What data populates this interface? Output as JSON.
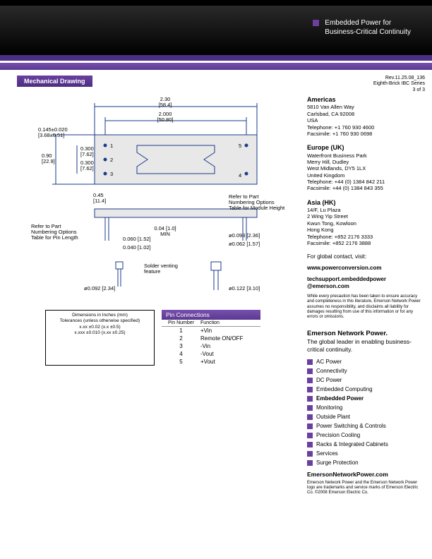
{
  "tagline": {
    "line1": "Embedded Power for",
    "line2": "Business-Critical Continuity"
  },
  "section_title": "Mechanical Drawing",
  "colors": {
    "purple_dark": "#4b2e83",
    "purple_mid": "#6b3fa0",
    "purple_light": "#7a4fb0",
    "dim_blue": "#1a3a8a"
  },
  "rev": {
    "line1": "Rev.11.25.08_136",
    "line2": "Eighth-Brick IBC Series",
    "line3": "3 of 3"
  },
  "drawing": {
    "dims": {
      "width": "2.30",
      "width_mm": "[58.4]",
      "pin_span": "2.000",
      "pin_span_mm": "[50.80]",
      "pin_x": "0.145±0.020",
      "pin_x_mm": "[3.68±0.51]",
      "v1": "0.300",
      "v1_mm": "[7.62]",
      "v2": "0.300",
      "v2_mm": "[7.62]",
      "height": "0.90",
      "height_mm": "[22.9]",
      "hb": "0.45",
      "hb_mm": "[11.4]",
      "clr": "0.04 [1.0]",
      "clr2": "MIN",
      "d1": "0.060 [1.52]",
      "d2": "0.040 [1.02]",
      "d3": "ø0.093 [2.36]",
      "d4": "ø0.062 [1.57]",
      "d5": "ø0.092 [2.34]",
      "d6": "ø0.122 [3.10]",
      "note1a": "Refer to Part",
      "note1b": "Numbering Options",
      "note1c": "Table for Pin Length",
      "note2a": "Refer to Part",
      "note2b": "Numbering Options",
      "note2c": "Table for Module Height",
      "solder": "Solder venting",
      "solder2": "feature"
    },
    "pins": {
      "p1": "1",
      "p2": "2",
      "p3": "3",
      "p4": "4",
      "p5": "5"
    }
  },
  "dim_note": {
    "l1": "Dimensions in Inches (mm)",
    "l2": "Tolerances (unless otherwise specified)",
    "l3": "x.xx ±0.02 (x.x ±0.5)",
    "l4": "x.xxx ±0.010 (x.xx ±0.25)"
  },
  "pin_connections": {
    "title": "Pin Connections",
    "col1": "Pin Number",
    "col2": "Function",
    "rows": [
      {
        "n": "1",
        "f": "+Vin"
      },
      {
        "n": "2",
        "f": "Remote ON/OFF"
      },
      {
        "n": "3",
        "f": "-Vin"
      },
      {
        "n": "4",
        "f": "-Vout"
      },
      {
        "n": "5",
        "f": "+Vout"
      }
    ]
  },
  "regions": {
    "americas": {
      "title": "Americas",
      "lines": [
        "5810 Van Allen Way",
        "Carlsbad, CA 92008",
        "USA",
        "Telephone: +1 760 930 4600",
        "Facsimile: +1 760 930 0698"
      ]
    },
    "europe": {
      "title": "Europe (UK)",
      "lines": [
        "Waterfront Business Park",
        "Merry Hill, Dudley",
        "West Midlands, DY5 1LX",
        "United Kingdom",
        "Telephone: +44 (0) 1384 842 211",
        "Facsimile:  +44 (0) 1384 843 355"
      ]
    },
    "asia": {
      "title": "Asia (HK)",
      "lines": [
        "14/F, Lu Plaza",
        "2 Wing Yip Street",
        "Kwun Tong, Kowloon",
        "Hong Kong",
        "Telephone: +852 2176 3333",
        "Facsimile:  +852 2176 3888"
      ]
    }
  },
  "global": {
    "text": "For global contact, visit:",
    "url": "www.powerconversion.com",
    "email1": "techsupport.embeddedpower",
    "email2": "@emerson.com"
  },
  "disclaimer": "While every precaution has been taken to ensure accuracy and completeness in this literature, Emerson Network Power assumes no responsibility, and disclaims all liability for damages resulting from use of this information or for any errors or omissions.",
  "enp": {
    "title": "Emerson Network Power.",
    "sub": "The global leader in enabling business-critical continuity."
  },
  "capabilities": [
    "AC Power",
    "Connectivity",
    "DC Power",
    "Embedded Computing",
    "Embedded Power",
    "Monitoring",
    "Outside Plant",
    "Power Switching & Controls",
    "Precision Cooling",
    "Racks & Integrated Cabinets",
    "Services",
    "Surge Protection"
  ],
  "bold_capability_index": 4,
  "footer": {
    "url": "EmersonNetworkPower.com",
    "legal": "Emerson Network Power and the Emerson Network Power logo are trademarks and service marks of Emerson Electric Co. ©2008 Emerson Electric Co."
  }
}
